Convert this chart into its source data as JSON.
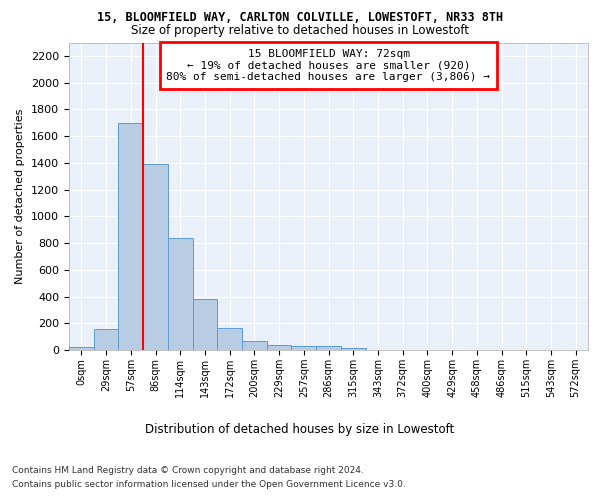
{
  "title": "15, BLOOMFIELD WAY, CARLTON COLVILLE, LOWESTOFT, NR33 8TH",
  "subtitle": "Size of property relative to detached houses in Lowestoft",
  "xlabel": "Distribution of detached houses by size in Lowestoft",
  "ylabel": "Number of detached properties",
  "bar_values": [
    20,
    155,
    1700,
    1390,
    835,
    385,
    165,
    65,
    38,
    30,
    30,
    18,
    0,
    0,
    0,
    0,
    0,
    0,
    0,
    0,
    0
  ],
  "bin_labels": [
    "0sqm",
    "29sqm",
    "57sqm",
    "86sqm",
    "114sqm",
    "143sqm",
    "172sqm",
    "200sqm",
    "229sqm",
    "257sqm",
    "286sqm",
    "315sqm",
    "343sqm",
    "372sqm",
    "400sqm",
    "429sqm",
    "458sqm",
    "486sqm",
    "515sqm",
    "543sqm",
    "572sqm"
  ],
  "bar_color": "#b8cce4",
  "bar_edge_color": "#5b9bd5",
  "property_line_x": 2.5,
  "annotation_line1": "15 BLOOMFIELD WAY: 72sqm",
  "annotation_line2": "← 19% of detached houses are smaller (920)",
  "annotation_line3": "80% of semi-detached houses are larger (3,806) →",
  "ylim": [
    0,
    2300
  ],
  "yticks": [
    0,
    200,
    400,
    600,
    800,
    1000,
    1200,
    1400,
    1600,
    1800,
    2000,
    2200
  ],
  "footnote1": "Contains HM Land Registry data © Crown copyright and database right 2024.",
  "footnote2": "Contains public sector information licensed under the Open Government Licence v3.0.",
  "plot_bg_color": "#eaf0f9"
}
